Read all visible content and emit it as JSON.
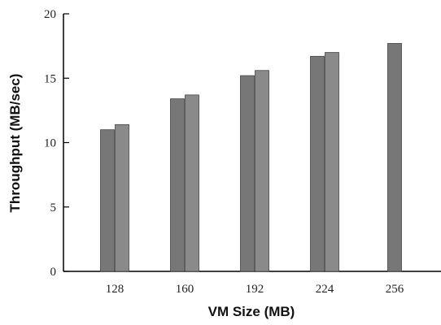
{
  "chart_data": {
    "type": "bar",
    "xlabel": "VM Size (MB)",
    "ylabel": "Throughput (MB/sec)",
    "ylim": [
      0,
      20
    ],
    "yticks": [
      0,
      5,
      10,
      15,
      20
    ],
    "grid": false,
    "categories": [
      "128",
      "160",
      "192",
      "224",
      "256"
    ],
    "series": [
      {
        "values": [
          11.0,
          13.4,
          15.2,
          16.7,
          17.7
        ],
        "color": "#777777"
      },
      {
        "values": [
          11.4,
          13.7,
          15.6,
          17.0,
          null
        ],
        "color": "#8a8a8a"
      }
    ]
  }
}
